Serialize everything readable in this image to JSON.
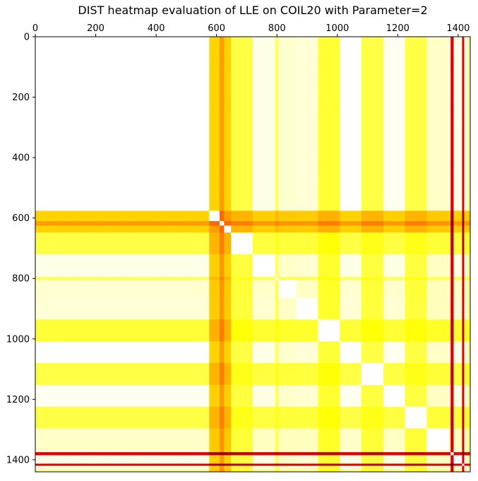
{
  "chart_data": {
    "type": "heatmap",
    "title": "DIST heatmap evaluation of LLE on COIL20 with Parameter=2",
    "xlabel": "",
    "ylabel": "",
    "xlim": [
      0,
      1440
    ],
    "ylim": [
      1440,
      0
    ],
    "x_ticks": [
      0,
      200,
      400,
      600,
      800,
      1000,
      1200,
      1400
    ],
    "y_ticks": [
      0,
      200,
      400,
      600,
      800,
      1000,
      1200,
      1400
    ],
    "x_tick_labels": [
      "0",
      "200",
      "400",
      "600",
      "800",
      "1000",
      "1200",
      "1400"
    ],
    "y_tick_labels": [
      "0",
      "200",
      "400",
      "600",
      "800",
      "1000",
      "1200",
      "1400"
    ],
    "x_axis_position": "top",
    "grid": false,
    "legend": "none",
    "colormap": "hot_r",
    "value_range": [
      0,
      1
    ],
    "block_size": 72,
    "block_strengths": [
      0.0,
      0.0,
      0.0,
      0.0,
      0.0,
      0.0,
      0.0,
      0.0,
      0.4,
      0.23,
      0.03,
      0.06,
      0.05,
      0.25,
      0.0,
      0.23,
      0.02,
      0.23,
      0.07,
      0.03
    ],
    "fine_bands": [
      {
        "start": 610,
        "end": 625,
        "strength": 0.5
      },
      {
        "start": 795,
        "end": 805,
        "strength": 0.2
      },
      {
        "start": 1375,
        "end": 1385,
        "strength": 0.85
      },
      {
        "start": 1413,
        "end": 1420,
        "strength": 0.85
      },
      {
        "start": 1430,
        "end": 1440,
        "strength": 0.12
      }
    ]
  }
}
